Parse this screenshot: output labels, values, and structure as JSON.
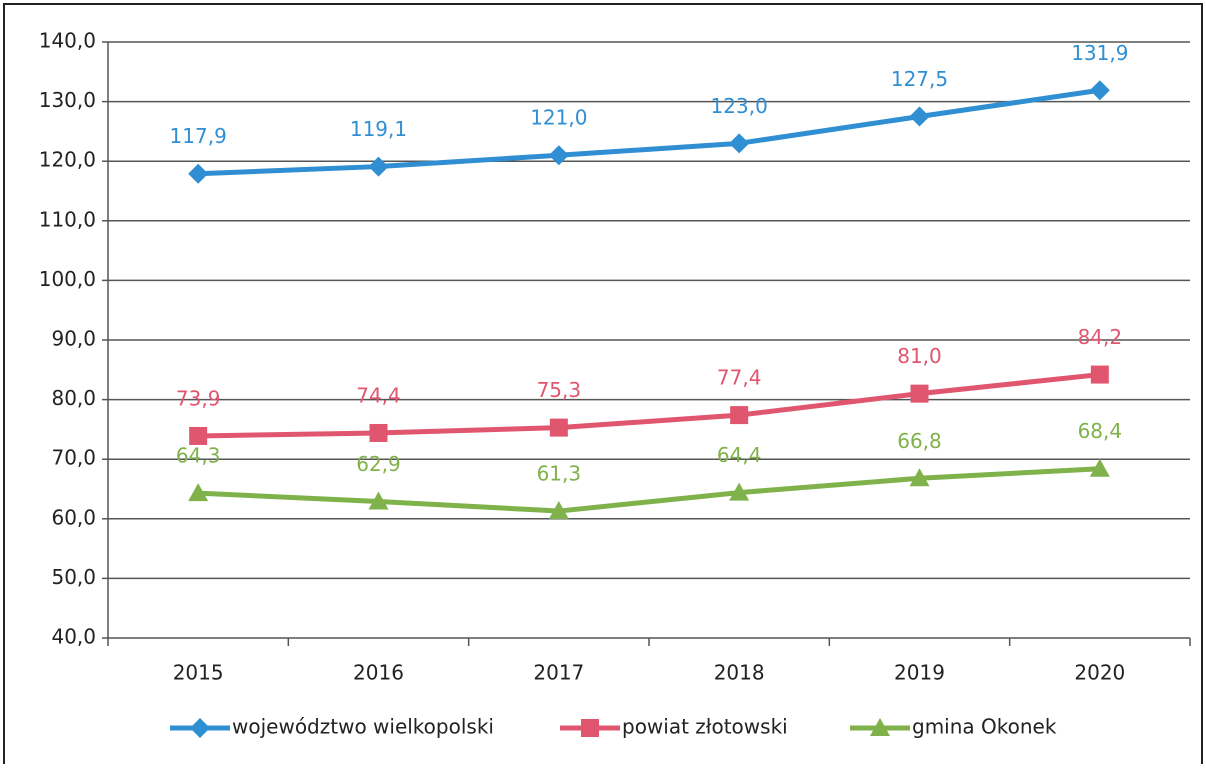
{
  "chart_data": {
    "type": "line",
    "categories": [
      "2015",
      "2016",
      "2017",
      "2018",
      "2019",
      "2020"
    ],
    "series": [
      {
        "name": "województwo wielkopolski",
        "color": "#2f8fd2",
        "marker": "diamond",
        "values": [
          117.9,
          119.1,
          121.0,
          123.0,
          127.5,
          131.9
        ],
        "value_labels": [
          "117,9",
          "119,1",
          "121,0",
          "123,0",
          "127,5",
          "131,9"
        ]
      },
      {
        "name": "powiat złotowski",
        "color": "#e0566f",
        "marker": "square",
        "values": [
          73.9,
          74.4,
          75.3,
          77.4,
          81.0,
          84.2
        ],
        "value_labels": [
          "73,9",
          "74,4",
          "75,3",
          "77,4",
          "81,0",
          "84,2"
        ]
      },
      {
        "name": "gmina Okonek",
        "color": "#7fb24a",
        "marker": "triangle",
        "values": [
          64.3,
          62.9,
          61.3,
          64.4,
          66.8,
          68.4
        ],
        "value_labels": [
          "64,3",
          "62,9",
          "61,3",
          "64,4",
          "66,8",
          "68,4"
        ]
      }
    ],
    "ylim": [
      40,
      140
    ],
    "yticks": [
      {
        "value": 40,
        "label": "40,0"
      },
      {
        "value": 50,
        "label": "50,0"
      },
      {
        "value": 60,
        "label": "60,0"
      },
      {
        "value": 70,
        "label": "70,0"
      },
      {
        "value": 80,
        "label": "80,0"
      },
      {
        "value": 90,
        "label": "90,0"
      },
      {
        "value": 100,
        "label": "100,0"
      },
      {
        "value": 110,
        "label": "110,0"
      },
      {
        "value": 120,
        "label": "120,0"
      },
      {
        "value": 130,
        "label": "130,0"
      },
      {
        "value": 140,
        "label": "140,0"
      }
    ],
    "grid": true,
    "legend": "bottom"
  }
}
